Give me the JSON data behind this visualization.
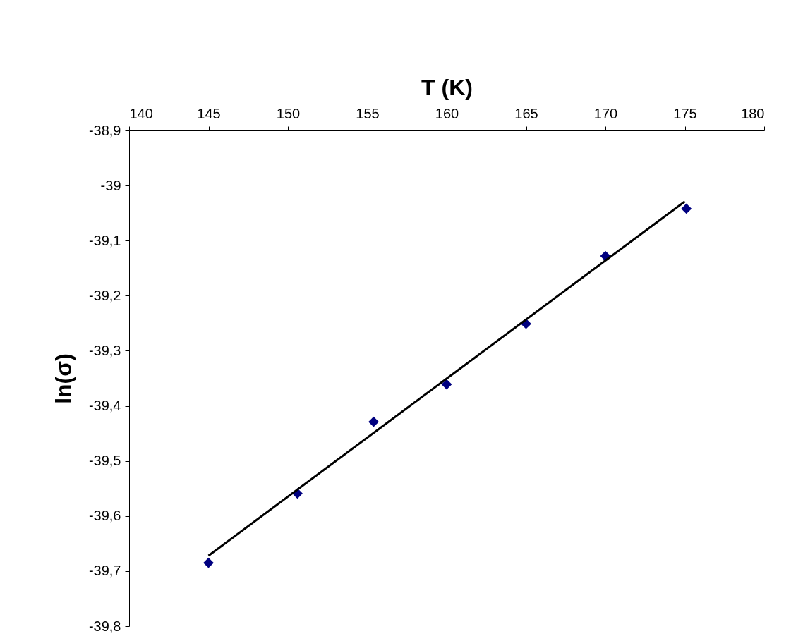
{
  "chart_data": {
    "type": "scatter",
    "xlabel": "T (K)",
    "ylabel": "ln(σ)",
    "xlim": [
      140,
      180
    ],
    "xticks": [
      140,
      145,
      150,
      155,
      160,
      165,
      170,
      175,
      180
    ],
    "ylim": [
      -39.8,
      -38.9
    ],
    "yticks": [
      {
        "value": -38.9,
        "label": "-38,9"
      },
      {
        "value": -39,
        "label": "-39"
      },
      {
        "value": -39.1,
        "label": "-39,1"
      },
      {
        "value": -39.2,
        "label": "-39,2"
      },
      {
        "value": -39.3,
        "label": "-39,3"
      },
      {
        "value": -39.4,
        "label": "-39,4"
      },
      {
        "value": -39.5,
        "label": "-39,5"
      },
      {
        "value": -39.6,
        "label": "-39,6"
      },
      {
        "value": -39.7,
        "label": "-39,7"
      },
      {
        "value": -39.8,
        "label": "-39,8"
      }
    ],
    "grid": false,
    "series": [
      {
        "type": "scatter",
        "marker": "diamond",
        "color": "#000080",
        "x": [
          145.0,
          150.6,
          155.4,
          160.0,
          165.0,
          170.0,
          175.1
        ],
        "values": [
          -39.685,
          -39.559,
          -39.429,
          -39.361,
          -39.251,
          -39.128,
          -39.042
        ]
      },
      {
        "type": "line",
        "color": "#000000",
        "x": [
          145,
          175
        ],
        "values": [
          -39.672,
          -39.029
        ]
      }
    ]
  }
}
